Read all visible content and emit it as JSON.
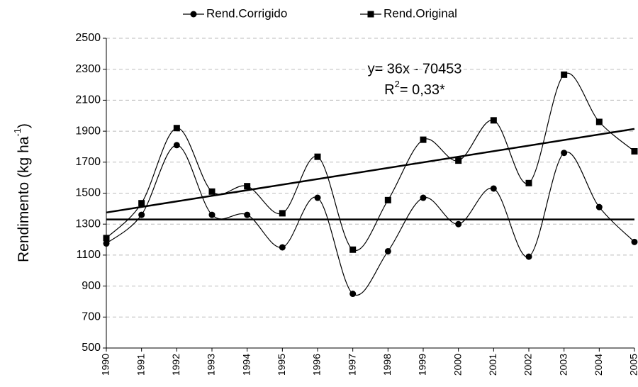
{
  "chart_data": {
    "type": "line",
    "y_label": {
      "text": "Rendimento (kg ha",
      "sup": "-1",
      "end": ")"
    },
    "annotation": {
      "equation": "y= 36x - 70453",
      "r_base": "R",
      "r_sup": "2",
      "r_rest": "= 0,33*"
    },
    "x": [
      1990,
      1991,
      1992,
      1993,
      1994,
      1995,
      1996,
      1997,
      1998,
      1999,
      2000,
      2001,
      2002,
      2003,
      2004,
      2005
    ],
    "xlim": [
      1990,
      2005
    ],
    "xticks": [
      1990,
      1991,
      1992,
      1993,
      1994,
      1995,
      1996,
      1997,
      1998,
      1999,
      2000,
      2001,
      2002,
      2003,
      2004,
      2005
    ],
    "ylim": [
      500,
      2500
    ],
    "yticks": [
      500,
      700,
      900,
      1100,
      1300,
      1500,
      1700,
      1900,
      2100,
      2300,
      2500
    ],
    "grid": true,
    "series": [
      {
        "name": "Rend.Corrigido",
        "color": "#000000",
        "marker": "circle",
        "values": [
          1175,
          1360,
          1810,
          1360,
          1360,
          1150,
          1470,
          850,
          1125,
          1470,
          1300,
          1530,
          1090,
          1760,
          1410,
          1185
        ]
      },
      {
        "name": "Rend.Original",
        "color": "#000000",
        "marker": "square",
        "values": [
          1210,
          1435,
          1920,
          1510,
          1545,
          1370,
          1735,
          1135,
          1455,
          1845,
          1710,
          1970,
          1565,
          2265,
          1960,
          1770
        ]
      }
    ],
    "trend_line": {
      "x": [
        1990,
        2005
      ],
      "values": [
        1375,
        1915
      ]
    },
    "mean_line": {
      "x": [
        1990,
        2005
      ],
      "values": [
        1330,
        1330
      ]
    }
  }
}
